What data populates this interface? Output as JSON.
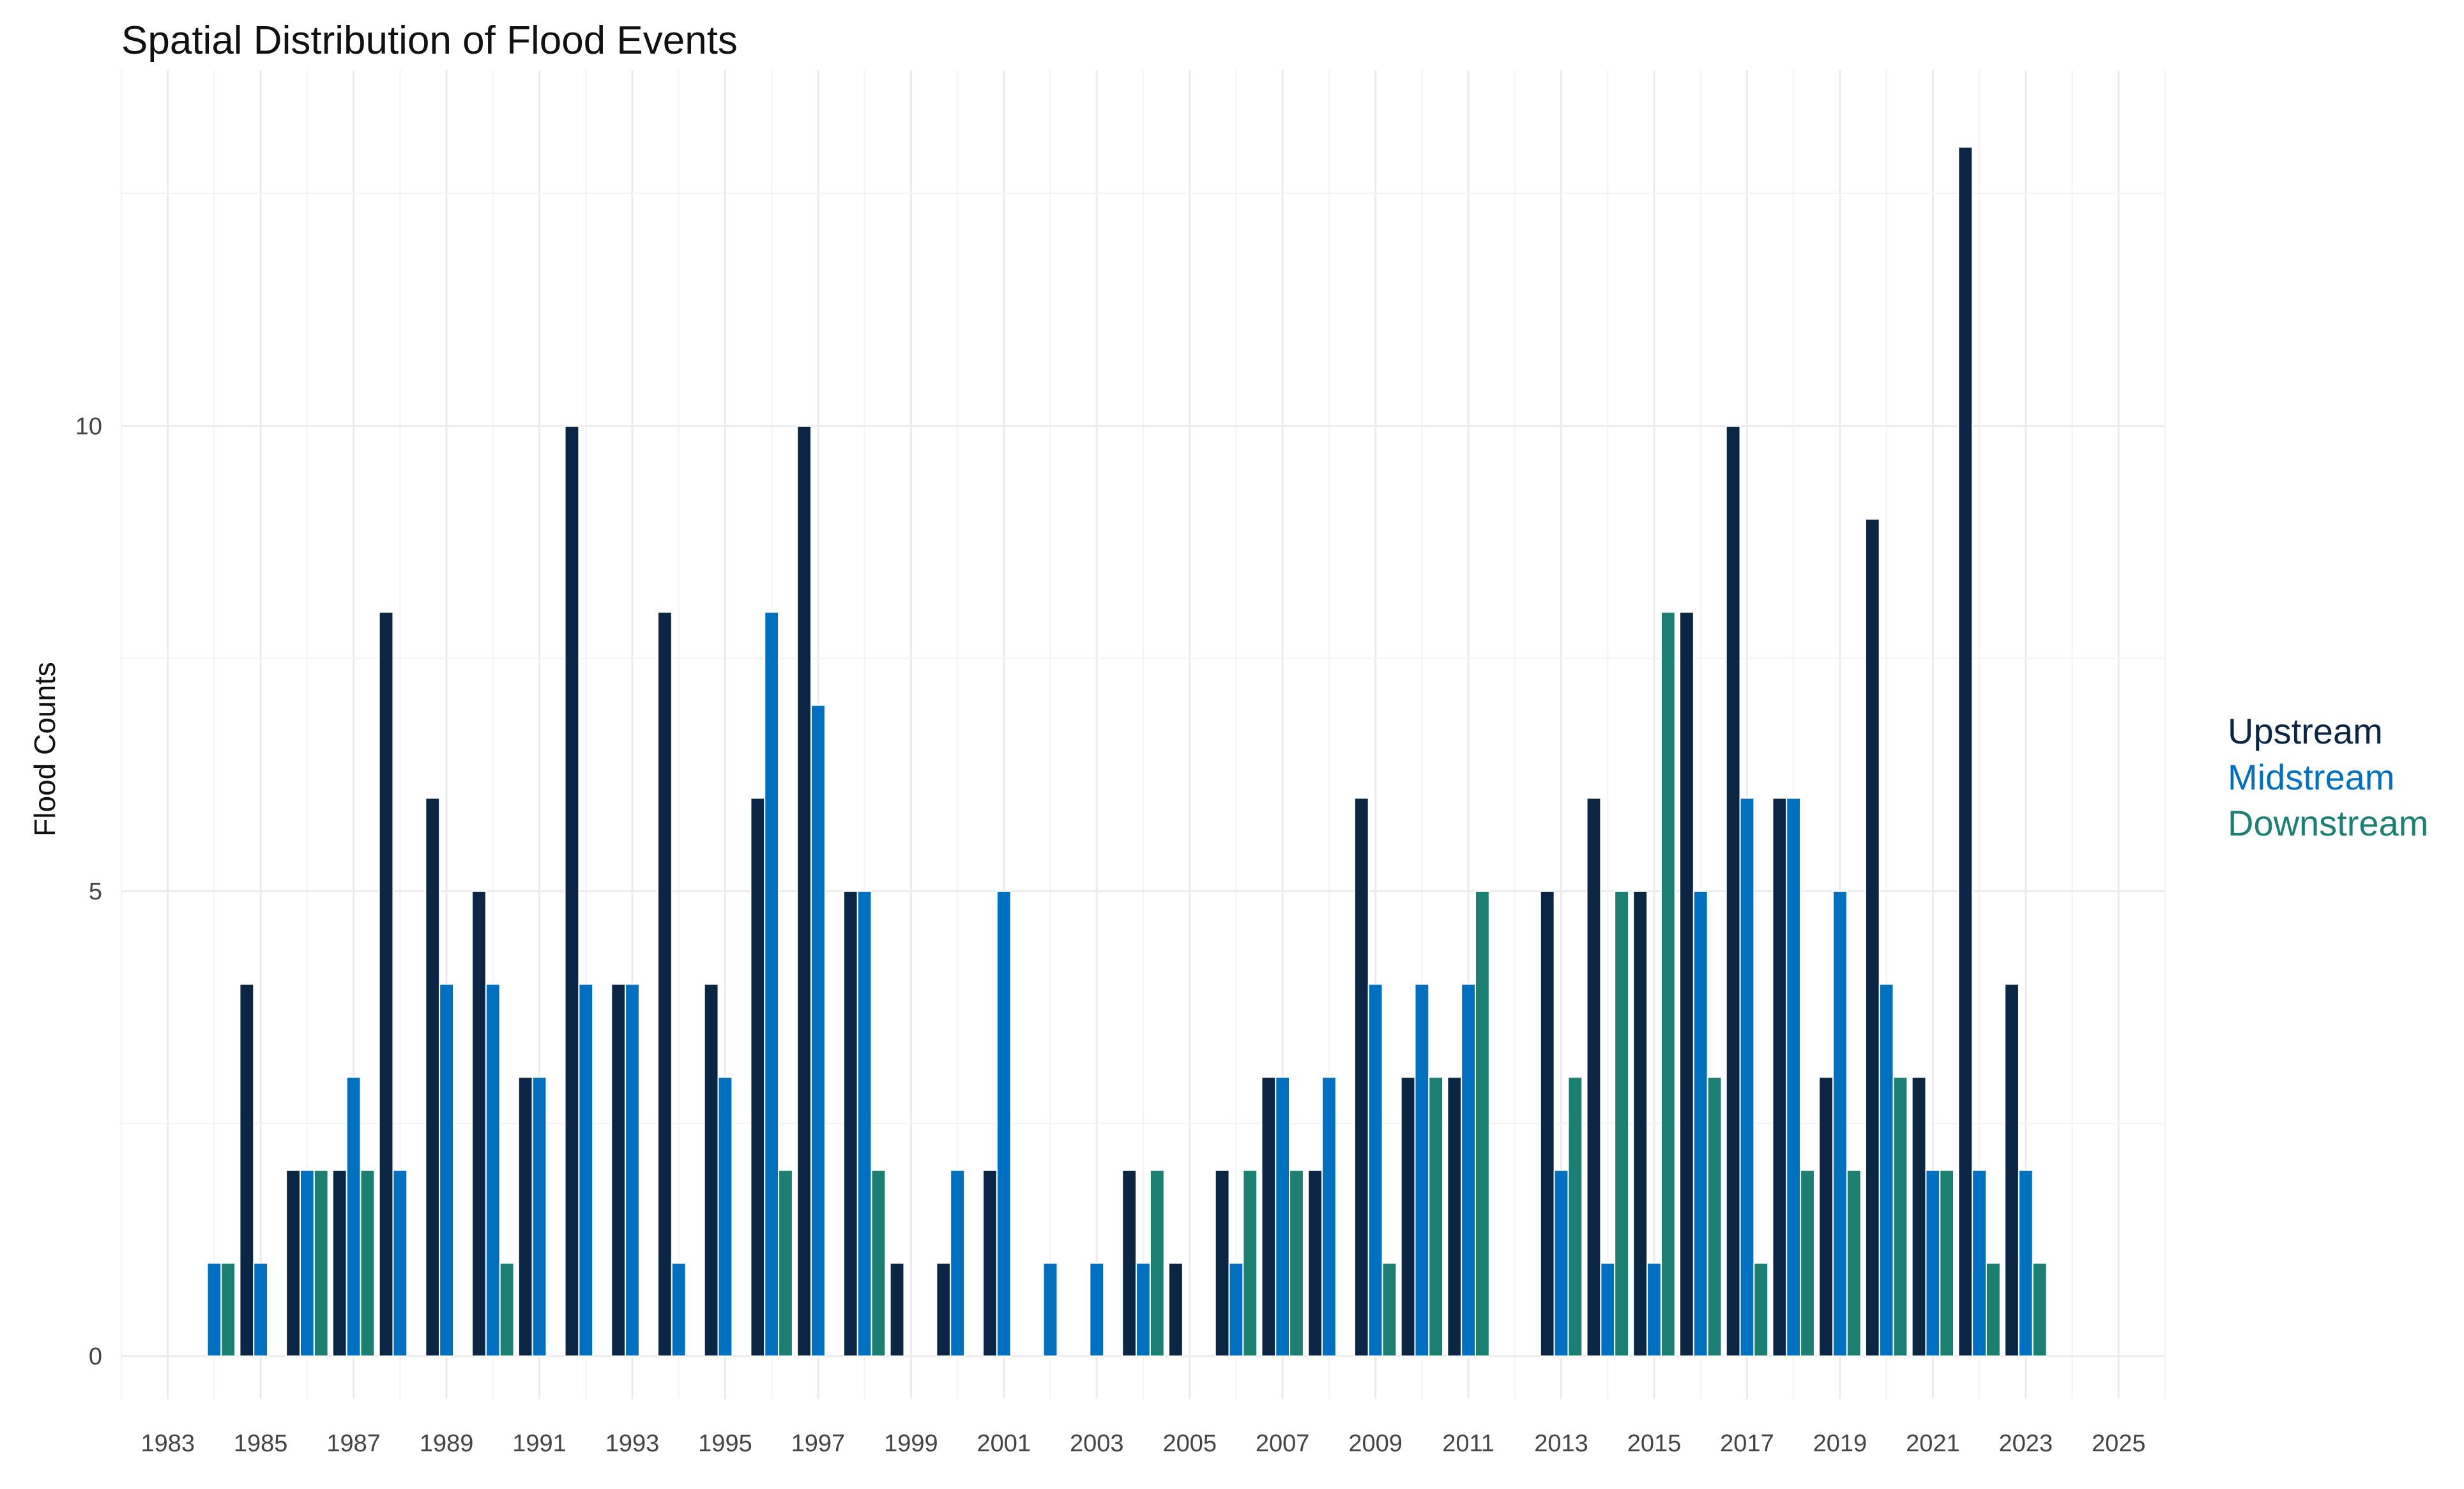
{
  "chart_data": {
    "type": "bar",
    "title": "Spatial Distribution of Flood Events",
    "xlabel": "",
    "ylabel": "Flood Counts",
    "xlim": [
      1982,
      2026
    ],
    "ylim": [
      0,
      14
    ],
    "x_ticks": [
      1983,
      1985,
      1987,
      1989,
      1991,
      1993,
      1995,
      1997,
      1999,
      2001,
      2003,
      2005,
      2007,
      2009,
      2011,
      2013,
      2015,
      2017,
      2019,
      2021,
      2023,
      2025
    ],
    "y_ticks": [
      0,
      5,
      10
    ],
    "legend_position": "right",
    "grid": true,
    "years": [
      1984,
      1985,
      1986,
      1987,
      1988,
      1989,
      1990,
      1991,
      1992,
      1993,
      1994,
      1995,
      1996,
      1997,
      1998,
      1999,
      2000,
      2001,
      2002,
      2003,
      2004,
      2005,
      2006,
      2007,
      2008,
      2009,
      2010,
      2011,
      2012,
      2013,
      2014,
      2015,
      2016,
      2017,
      2018,
      2019,
      2020,
      2021,
      2022,
      2023
    ],
    "series": [
      {
        "name": "Upstream",
        "color": "#0b2545",
        "values": [
          0,
          4,
          2,
          2,
          8,
          6,
          5,
          3,
          10,
          4,
          8,
          4,
          6,
          10,
          5,
          1,
          1,
          2,
          0,
          0,
          2,
          1,
          2,
          3,
          2,
          6,
          3,
          3,
          0,
          5,
          6,
          5,
          8,
          10,
          6,
          3,
          9,
          3,
          13,
          4
        ]
      },
      {
        "name": "Midstream",
        "color": "#0070c0",
        "values": [
          1,
          1,
          2,
          3,
          2,
          4,
          4,
          3,
          4,
          4,
          1,
          3,
          8,
          7,
          5,
          0,
          2,
          5,
          1,
          1,
          1,
          0,
          1,
          3,
          3,
          4,
          4,
          4,
          0,
          2,
          1,
          1,
          5,
          6,
          6,
          5,
          4,
          2,
          2,
          2
        ]
      },
      {
        "name": "Downstream",
        "color": "#1b7f72",
        "values": [
          1,
          0,
          2,
          2,
          0,
          0,
          1,
          0,
          0,
          0,
          0,
          0,
          2,
          0,
          2,
          0,
          0,
          0,
          0,
          0,
          2,
          0,
          2,
          2,
          0,
          1,
          3,
          5,
          0,
          3,
          5,
          8,
          3,
          1,
          2,
          2,
          3,
          2,
          1,
          1
        ]
      }
    ]
  }
}
